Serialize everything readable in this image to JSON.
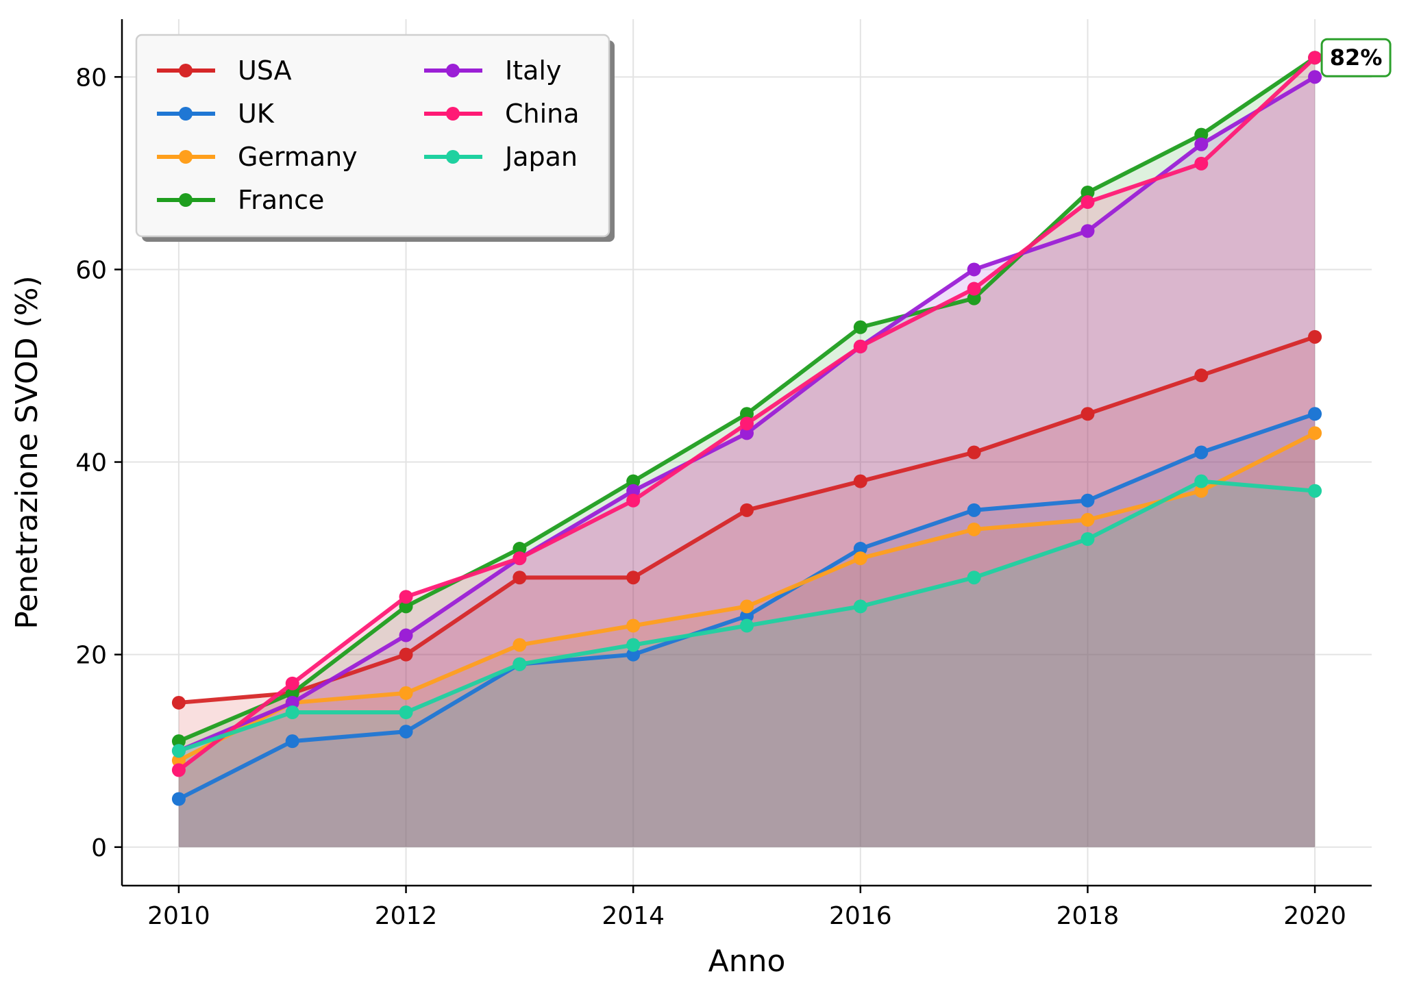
{
  "chart_data": {
    "type": "line",
    "xlabel": "Anno",
    "ylabel": "Penetrazione SVOD (%)",
    "x": [
      2010,
      2011,
      2012,
      2013,
      2014,
      2015,
      2016,
      2017,
      2018,
      2019,
      2020
    ],
    "xlim": [
      2009.5,
      2020.5
    ],
    "ylim": [
      -4,
      86
    ],
    "xticks": [
      2010,
      2012,
      2014,
      2016,
      2018,
      2020
    ],
    "yticks": [
      0,
      20,
      40,
      60,
      80
    ],
    "grid": true,
    "fill_under": true,
    "markers": true,
    "legend": {
      "position": "top-left",
      "columns": 2
    },
    "series": [
      {
        "name": "USA",
        "color": "#d62728",
        "values": [
          15,
          16,
          20,
          28,
          28,
          35,
          38,
          41,
          45,
          49,
          53
        ]
      },
      {
        "name": "UK",
        "color": "#1f77d4",
        "values": [
          5,
          11,
          12,
          19,
          20,
          24,
          31,
          35,
          36,
          41,
          45
        ]
      },
      {
        "name": "Germany",
        "color": "#ff9f1c",
        "values": [
          9,
          15,
          16,
          21,
          23,
          25,
          30,
          33,
          34,
          37,
          43
        ]
      },
      {
        "name": "France",
        "color": "#1f9e1f",
        "values": [
          11,
          16,
          25,
          31,
          38,
          45,
          54,
          57,
          68,
          74,
          82
        ]
      },
      {
        "name": "Italy",
        "color": "#9b1fd6",
        "values": [
          10,
          15,
          22,
          30,
          37,
          43,
          52,
          60,
          64,
          73,
          80
        ]
      },
      {
        "name": "China",
        "color": "#ff1a75",
        "values": [
          8,
          17,
          26,
          30,
          36,
          44,
          52,
          58,
          67,
          71,
          82
        ]
      },
      {
        "name": "Japan",
        "color": "#1fd1a0",
        "values": [
          10,
          14,
          14,
          19,
          21,
          23,
          25,
          28,
          32,
          38,
          37
        ]
      }
    ],
    "annotation": {
      "text": "82%",
      "x": 2020,
      "y": 82,
      "border_color": "#2ca02c"
    }
  }
}
